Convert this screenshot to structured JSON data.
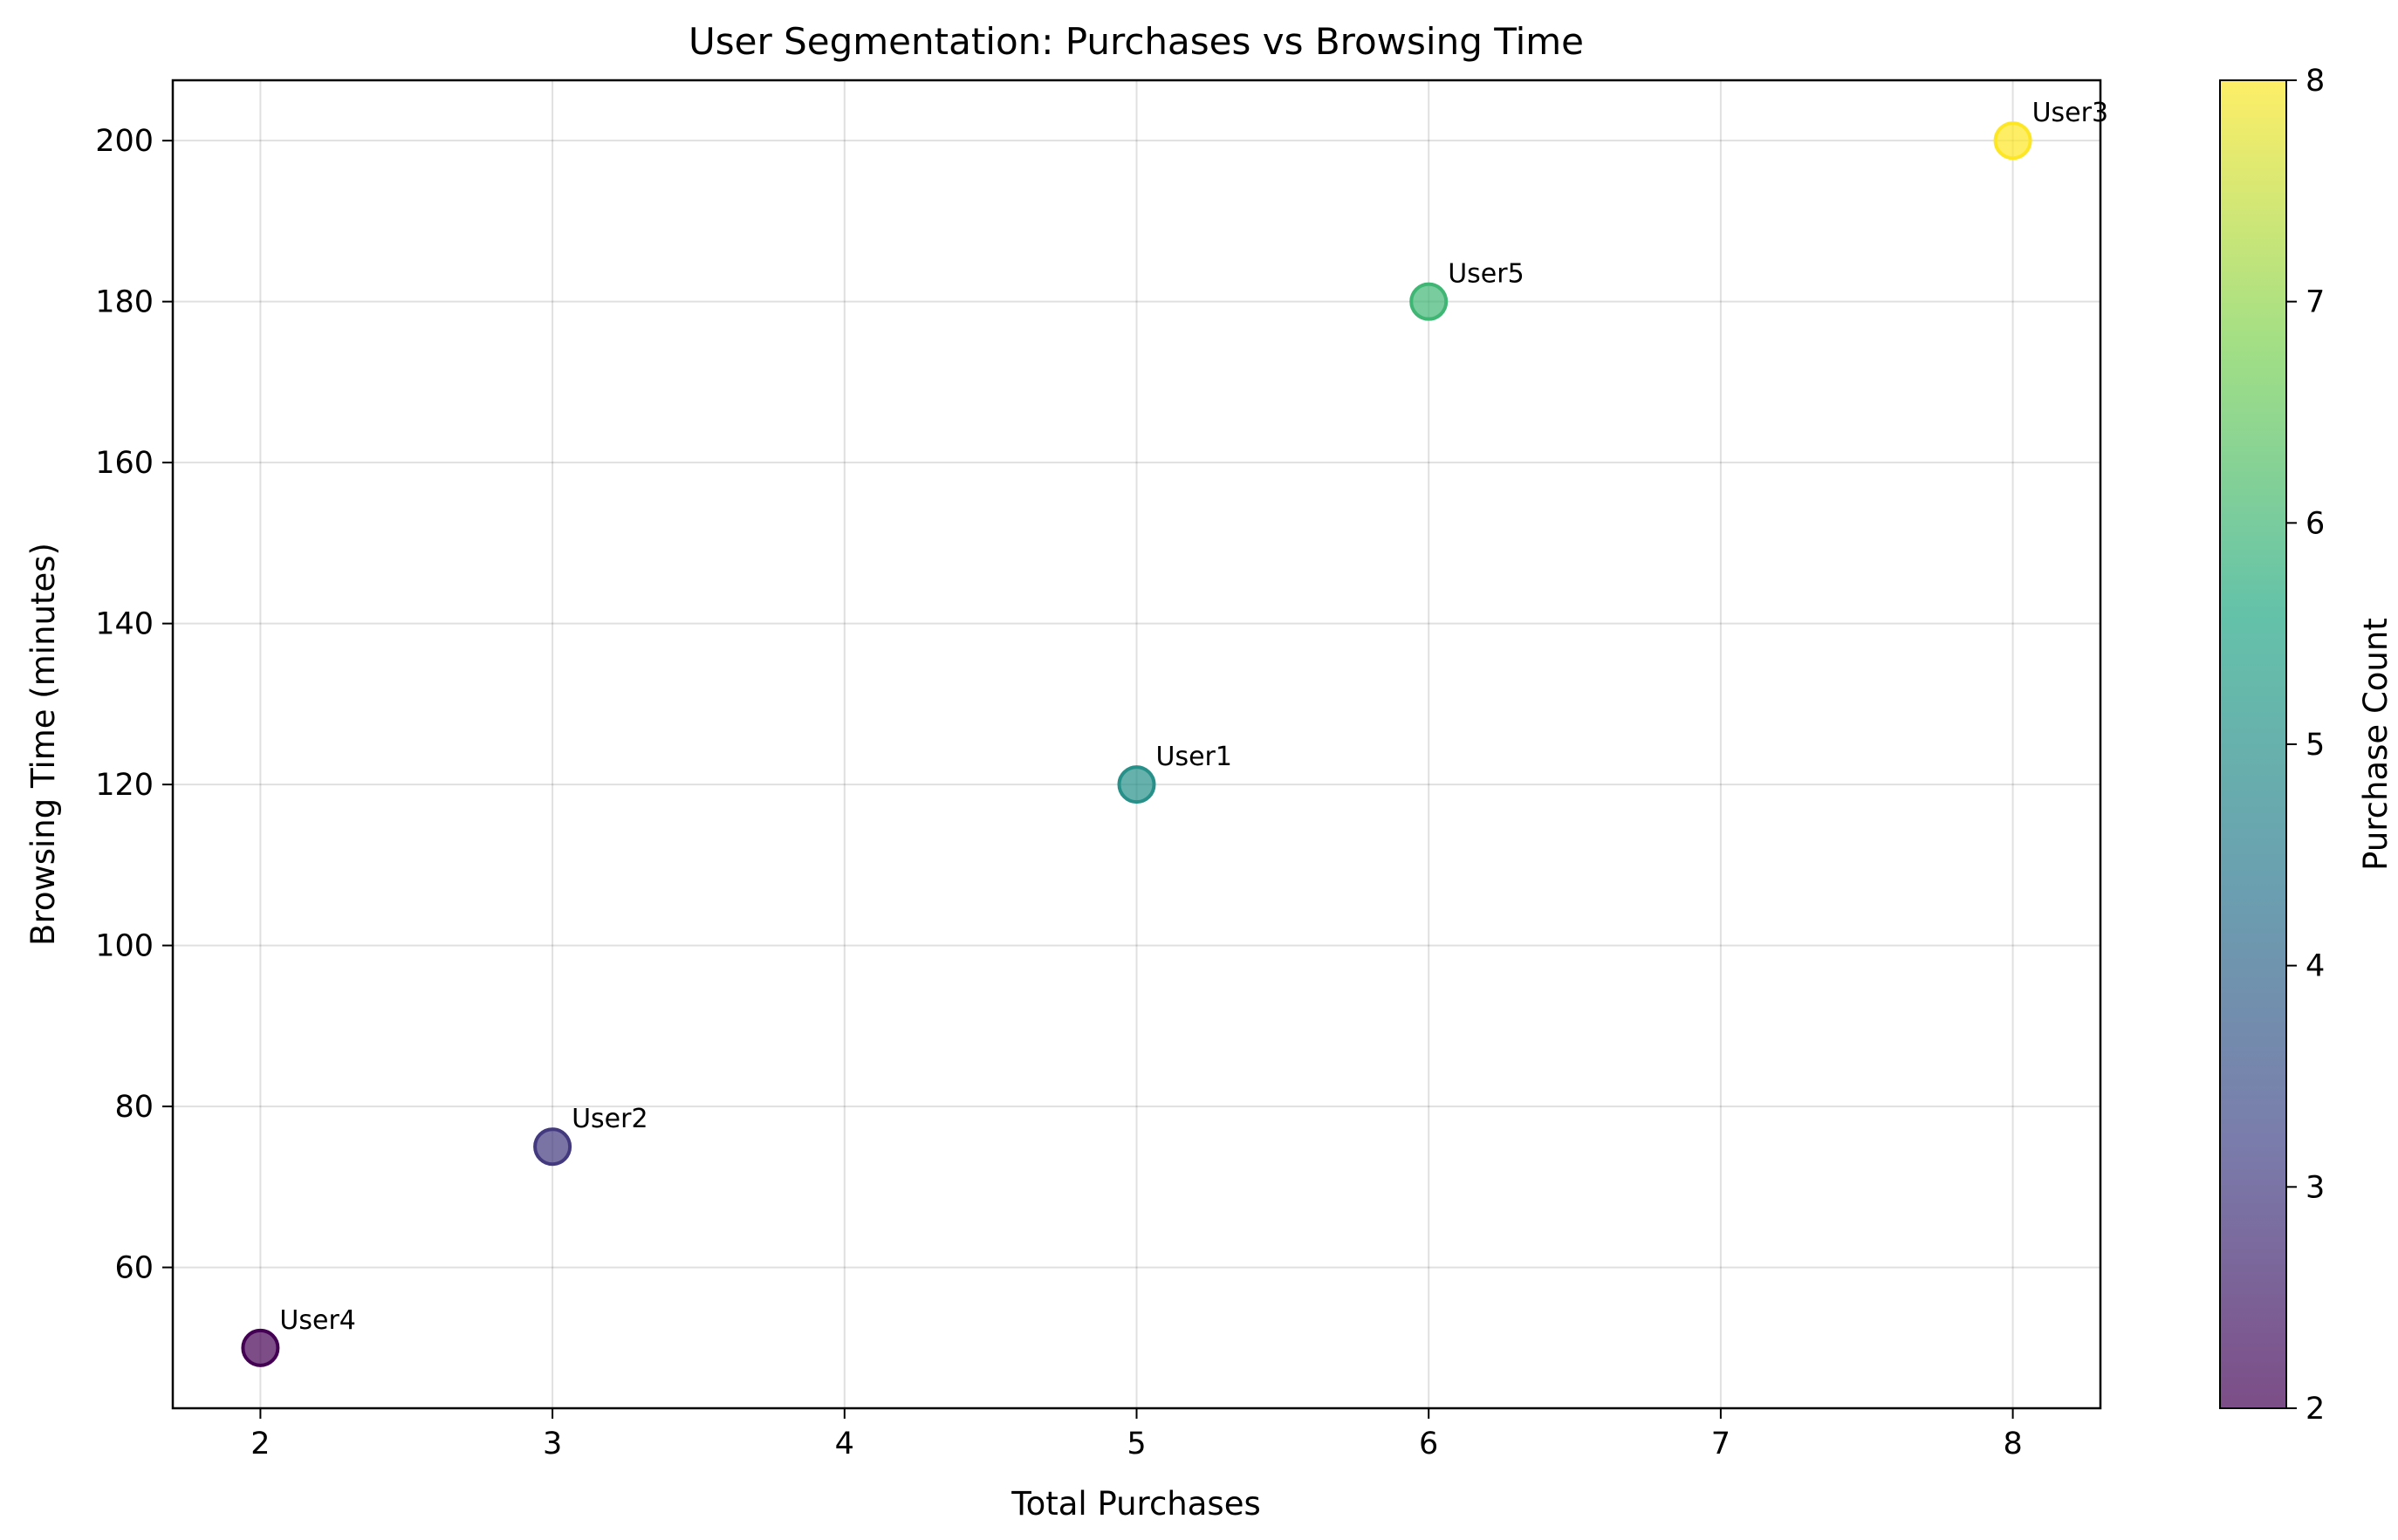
{
  "chart_data": {
    "type": "scatter",
    "title": "User Segmentation: Purchases vs Browsing Time",
    "xlabel": "Total Purchases",
    "ylabel": "Browsing Time (minutes)",
    "xlim": [
      1.7,
      8.3
    ],
    "ylim": [
      42.5,
      207.5
    ],
    "xticks": [
      2,
      3,
      4,
      5,
      6,
      7,
      8
    ],
    "yticks": [
      60,
      80,
      100,
      120,
      140,
      160,
      180,
      200
    ],
    "grid": true,
    "points": [
      {
        "label": "User1",
        "x": 5,
        "y": 120,
        "color_value": 5
      },
      {
        "label": "User2",
        "x": 3,
        "y": 75,
        "color_value": 3
      },
      {
        "label": "User3",
        "x": 8,
        "y": 200,
        "color_value": 8
      },
      {
        "label": "User4",
        "x": 2,
        "y": 50,
        "color_value": 2
      },
      {
        "label": "User5",
        "x": 6,
        "y": 180,
        "color_value": 6
      }
    ],
    "colorbar": {
      "label": "Purchase Count",
      "range": [
        2,
        8
      ],
      "ticks": [
        2,
        3,
        4,
        5,
        6,
        7,
        8
      ],
      "colormap": "viridis"
    },
    "colormap_stops": [
      "#440154",
      "#414487",
      "#2a788e",
      "#22a884",
      "#7ad151",
      "#fde725"
    ]
  }
}
